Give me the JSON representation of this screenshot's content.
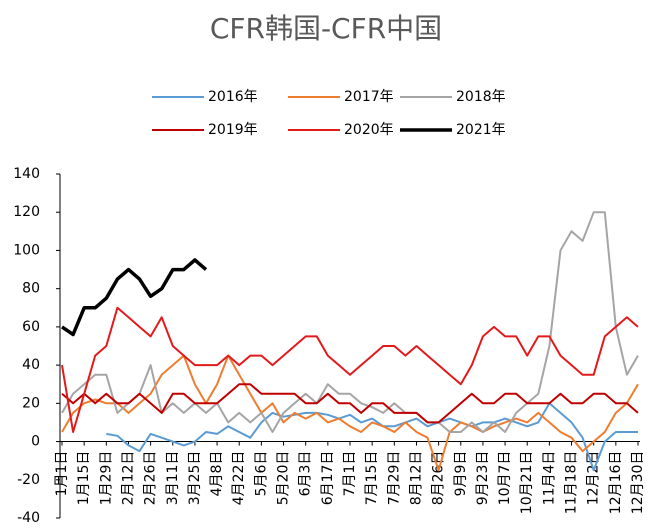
{
  "chart_data": {
    "type": "line",
    "title": "CFR韩国-CFR中国",
    "categories": [
      "1月1日",
      null,
      "1月15日",
      null,
      "1月29日",
      null,
      "2月12日",
      null,
      "2月26日",
      null,
      "3月11日",
      null,
      "3月25日",
      null,
      "4月8日",
      null,
      "4月22日",
      null,
      "5月6日",
      null,
      "5月20日",
      null,
      "6月3日",
      null,
      "6月17日",
      null,
      "7月1日",
      null,
      "7月15日",
      null,
      "7月29日",
      null,
      "8月12日",
      null,
      "8月26日",
      null,
      "9月9日",
      null,
      "9月23日",
      null,
      "10月7日",
      null,
      "10月21日",
      null,
      "11月4日",
      null,
      "11月18日",
      null,
      "12月2日",
      null,
      "12月16日",
      null,
      "12月30日"
    ],
    "series": [
      {
        "name": "2016年",
        "color": "#5b9bd5",
        "values": [
          null,
          null,
          null,
          null,
          4,
          3,
          -2,
          -5,
          4,
          2,
          0,
          -2,
          0,
          5,
          4,
          8,
          5,
          2,
          10,
          15,
          13,
          14,
          15,
          15,
          14,
          12,
          14,
          10,
          12,
          8,
          8,
          10,
          12,
          8,
          10,
          12,
          10,
          8,
          10,
          10,
          12,
          10,
          8,
          10,
          20,
          15,
          10,
          2,
          -15,
          0,
          5,
          5,
          5
        ]
      },
      {
        "name": "2017年",
        "color": "#ed7d31",
        "values": [
          5,
          15,
          20,
          22,
          20,
          20,
          15,
          20,
          25,
          35,
          40,
          45,
          30,
          20,
          30,
          45,
          35,
          25,
          15,
          20,
          10,
          15,
          12,
          15,
          10,
          12,
          8,
          5,
          10,
          8,
          5,
          10,
          5,
          2,
          -15,
          5,
          10,
          8,
          5,
          8,
          10,
          12,
          10,
          15,
          10,
          5,
          2,
          -5,
          0,
          5,
          15,
          20,
          30
        ]
      },
      {
        "name": "2018年",
        "color": "#a5a5a5",
        "values": [
          15,
          25,
          30,
          35,
          35,
          15,
          20,
          25,
          40,
          15,
          20,
          15,
          20,
          15,
          20,
          10,
          15,
          10,
          15,
          5,
          15,
          20,
          25,
          20,
          30,
          25,
          25,
          20,
          18,
          15,
          20,
          15,
          15,
          10,
          10,
          5,
          5,
          10,
          5,
          10,
          5,
          15,
          20,
          25,
          50,
          100,
          110,
          105,
          120,
          120,
          60,
          35,
          45
        ]
      },
      {
        "name": "2019年",
        "color": "#c00000",
        "values": [
          25,
          20,
          25,
          20,
          25,
          20,
          20,
          25,
          20,
          15,
          25,
          25,
          20,
          20,
          20,
          25,
          30,
          30,
          25,
          25,
          25,
          25,
          20,
          20,
          25,
          20,
          20,
          15,
          20,
          20,
          15,
          15,
          15,
          10,
          10,
          15,
          20,
          25,
          20,
          20,
          25,
          25,
          20,
          20,
          20,
          25,
          20,
          20,
          25,
          25,
          20,
          20,
          15
        ]
      },
      {
        "name": "2020年",
        "color": "#e31a1c",
        "values": [
          40,
          5,
          25,
          45,
          50,
          70,
          65,
          60,
          55,
          65,
          50,
          45,
          40,
          40,
          40,
          45,
          40,
          45,
          45,
          40,
          45,
          50,
          55,
          55,
          45,
          40,
          35,
          40,
          45,
          50,
          50,
          45,
          50,
          45,
          40,
          35,
          30,
          40,
          55,
          60,
          55,
          55,
          45,
          55,
          55,
          45,
          40,
          35,
          35,
          55,
          60,
          65,
          60
        ]
      },
      {
        "name": "2021年",
        "color": "#000000",
        "values": [
          60,
          56,
          70,
          70,
          75,
          85,
          90,
          85,
          76,
          80,
          90,
          90,
          95,
          90,
          null,
          null,
          null,
          null,
          null,
          null,
          null,
          null,
          null,
          null,
          null,
          null,
          null,
          null,
          null,
          null,
          null,
          null,
          null,
          null,
          null,
          null,
          null,
          null,
          null,
          null,
          null,
          null,
          null,
          null,
          null,
          null,
          null,
          null,
          null,
          null,
          null,
          null,
          null
        ]
      }
    ],
    "ylim": [
      -40,
      140
    ],
    "yticks": [
      -40,
      -20,
      0,
      20,
      40,
      60,
      80,
      100,
      120,
      140
    ],
    "legend": "top"
  }
}
